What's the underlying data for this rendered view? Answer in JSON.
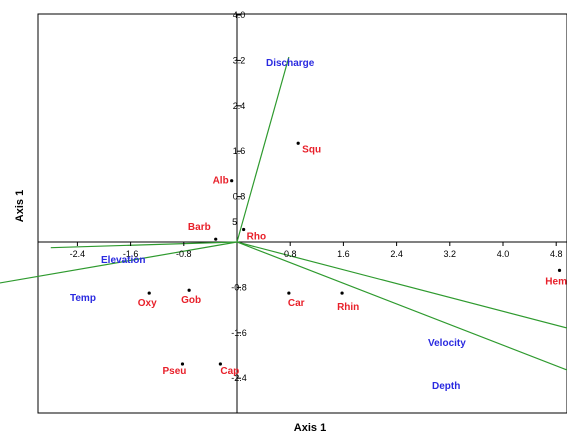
{
  "chart_data": {
    "type": "scatter",
    "xlabel": "Axis 1",
    "ylabel": "Axis 1",
    "xlim": [
      -3.2,
      4.9
    ],
    "ylim": [
      -2.9,
      4.0
    ],
    "x_ticks": [
      "-2.4",
      "-1.6",
      "-0.8",
      "0.8",
      "1.6",
      "2.4",
      "3.2",
      "4.0",
      "4.8"
    ],
    "x_tick_values": [
      -2.4,
      -1.6,
      -0.8,
      0.8,
      1.6,
      2.4,
      3.2,
      4.0,
      4.8
    ],
    "y_ticks": [
      "4.0",
      "3.2",
      "2.4",
      "1.6",
      "0.8",
      "-0.8",
      "-1.6",
      "-2.4"
    ],
    "y_tick_values": [
      4.0,
      3.2,
      2.4,
      1.6,
      0.8,
      -0.8,
      -1.6,
      -2.4
    ],
    "colors": {
      "species": "#e8202a",
      "variables": "#2a2ae0",
      "vectors": "#2e9a2e",
      "axes": "#000000"
    },
    "species": [
      {
        "label": "Squ",
        "x": 0.92,
        "y": 1.74
      },
      {
        "label": "Alb",
        "x": -0.08,
        "y": 1.08
      },
      {
        "label": "Barb",
        "x": -0.32,
        "y": 0.05
      },
      {
        "label": "Rho",
        "x": 0.1,
        "y": 0.22
      },
      {
        "label": "Oxy",
        "x": -1.32,
        "y": -0.9
      },
      {
        "label": "Gob",
        "x": -0.72,
        "y": -0.85
      },
      {
        "label": "Car",
        "x": 0.78,
        "y": -0.9
      },
      {
        "label": "Rhin",
        "x": 1.58,
        "y": -0.9
      },
      {
        "label": "Pseu",
        "x": -0.82,
        "y": -2.15
      },
      {
        "label": "Cap",
        "x": -0.25,
        "y": -2.15
      },
      {
        "label": "Hemi",
        "x": 4.85,
        "y": -0.5
      }
    ],
    "variables": [
      {
        "label": "Discharge",
        "x": 0.78,
        "y": 3.26
      },
      {
        "label": "Elevation",
        "x": -2.8,
        "y": -0.1
      },
      {
        "label": "Temp",
        "x": -4.05,
        "y": -0.82
      },
      {
        "label": "Velocity",
        "x": 5.4,
        "y": -1.65
      },
      {
        "label": "Depth",
        "x": 5.5,
        "y": -2.5
      }
    ],
    "annotations": [
      {
        "text": "5",
        "x": -0.05,
        "y": 0.35
      }
    ]
  }
}
